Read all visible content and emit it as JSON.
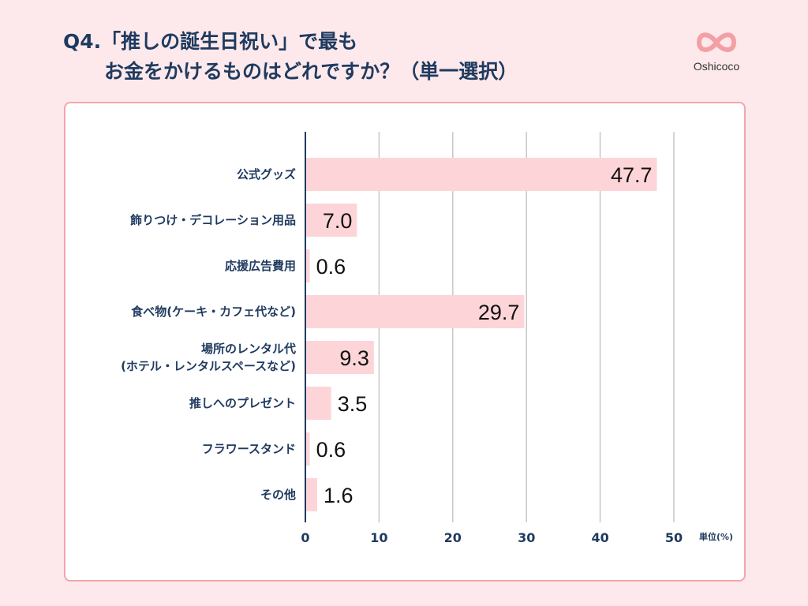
{
  "title": {
    "line1": "Q4.「推しの誕生日祝い」で最も",
    "line2": "お金をかけるものはどれですか？（単一選択）"
  },
  "logo": {
    "name": "Oshicoco",
    "icon": "infinity-heart-logo"
  },
  "colors": {
    "bar": "#fdd5d8",
    "axis": "#1f3a5f",
    "grid": "#c8c8c8",
    "border": "#f4a6ab",
    "background": "#fde9eb"
  },
  "chart_data": {
    "type": "bar",
    "orientation": "horizontal",
    "categories": [
      [
        "公式グッズ"
      ],
      [
        "飾りつけ・デコレーション用品"
      ],
      [
        "応援広告費用"
      ],
      [
        "食べ物(ケーキ・カフェ代など)"
      ],
      [
        "場所のレンタル代",
        "(ホテル・レンタルスペースなど)"
      ],
      [
        "推しへのプレゼント"
      ],
      [
        "フラワースタンド"
      ],
      [
        "その他"
      ]
    ],
    "values": [
      47.7,
      7.0,
      0.6,
      29.7,
      9.3,
      3.5,
      0.6,
      1.6
    ],
    "value_labels": [
      "47.7",
      "7.0",
      "0.6",
      "29.7",
      "9.3",
      "3.5",
      "0.6",
      "1.6"
    ],
    "xlim": [
      0,
      50
    ],
    "ticks": [
      "0",
      "10",
      "20",
      "30",
      "40",
      "50"
    ],
    "unit_label": "単位(%)",
    "grid": true
  }
}
